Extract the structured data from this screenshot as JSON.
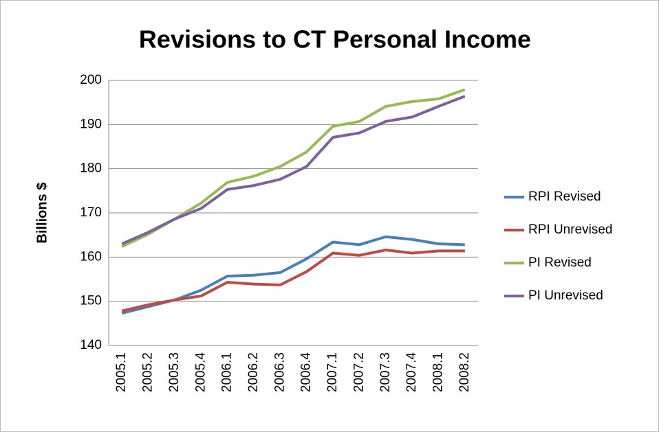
{
  "chart_data": {
    "type": "line",
    "title": "Revisions to CT Personal Income",
    "y_label": "Billions $",
    "categories": [
      "2005.1",
      "2005.2",
      "2005.3",
      "2005.4",
      "2006.1",
      "2006.2",
      "2006.3",
      "2006.4",
      "2007.1",
      "2007.2",
      "2007.3",
      "2007.4",
      "2008.1",
      "2008.2"
    ],
    "series": [
      {
        "name": "RPI Revised",
        "color": "#4a7ebb",
        "values": [
          147.3,
          148.8,
          150.3,
          152.5,
          155.7,
          155.9,
          156.5,
          159.6,
          163.4,
          162.8,
          164.6,
          164.0,
          163.0,
          162.8
        ]
      },
      {
        "name": "RPI Unrevised",
        "color": "#be4b48",
        "values": [
          147.8,
          149.2,
          150.3,
          151.2,
          154.3,
          153.9,
          153.7,
          156.7,
          160.9,
          160.4,
          161.6,
          160.9,
          161.4,
          161.4
        ]
      },
      {
        "name": "PI Revised",
        "color": "#98b954",
        "values": [
          162.4,
          165.2,
          168.6,
          172.2,
          176.9,
          178.3,
          180.5,
          183.8,
          189.6,
          190.7,
          194.1,
          195.2,
          195.8,
          197.9
        ]
      },
      {
        "name": "PI Unrevised",
        "color": "#7d60a0",
        "values": [
          163.0,
          165.6,
          168.6,
          171.0,
          175.3,
          176.2,
          177.6,
          180.5,
          187.1,
          188.1,
          190.7,
          191.7,
          194.1,
          196.4
        ]
      }
    ],
    "ylim": [
      140,
      200
    ],
    "yticks": [
      140,
      150,
      160,
      170,
      180,
      190,
      200
    ],
    "grid": true,
    "legend": "right"
  }
}
